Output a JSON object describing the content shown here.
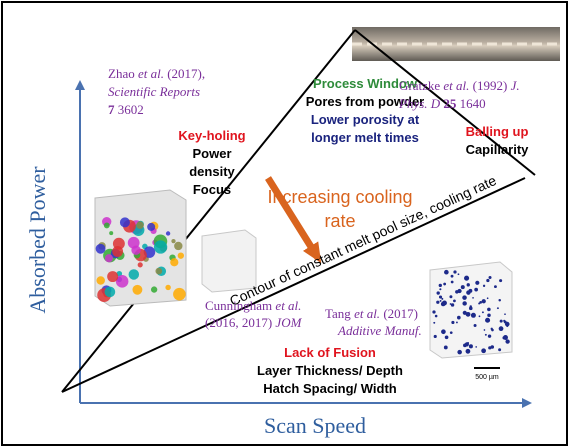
{
  "axes": {
    "y_label": "Absorbed Power",
    "x_label": "Scan Speed"
  },
  "zhao": {
    "author": "Zhao",
    "etal": "et al.",
    "year": "(2017),",
    "journal": "Scientific Reports",
    "volume": "7",
    "page": "3602"
  },
  "keyholing": {
    "title": "Key-holing",
    "lines": [
      "Power",
      "density",
      "Focus"
    ]
  },
  "process_window": {
    "title": "Process Window",
    "line1": "Pores from powder",
    "lines": [
      "Lower porosity at",
      "longer melt times"
    ]
  },
  "gratzke": {
    "author": "Gratzke",
    "etal": "et al.",
    "year": "(1992)",
    "journal1": "J.",
    "journal2": "Phys. D",
    "volume": "25",
    "page": "1640"
  },
  "balling": {
    "title": "Balling up",
    "line1": "Capillarity"
  },
  "cooling": {
    "lines": [
      "Increasing cooling",
      "rate"
    ]
  },
  "contour": "Contour of constant melt pool size, cooling rate",
  "cunningham": {
    "author": "Cunningham",
    "etal": "et al.",
    "years": "(2016, 2017)",
    "journal": "JOM"
  },
  "tang": {
    "author": "Tang",
    "etal": "et al.",
    "year": "(2017)",
    "journal": "Additive Manuf."
  },
  "lack_of_fusion": {
    "title": "Lack of Fusion",
    "lines": [
      "Layer Thickness/ Depth",
      "Hatch Spacing/ Width"
    ]
  },
  "scale_bar": "500 µm"
}
